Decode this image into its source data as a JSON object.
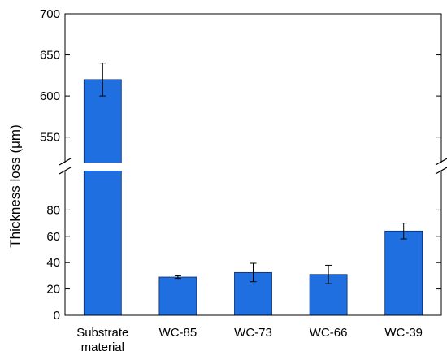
{
  "chart_data": {
    "type": "bar",
    "ylabel": "Thickness loss (μm)",
    "categories": [
      [
        "Substrate",
        "material"
      ],
      [
        "WC-85"
      ],
      [
        "WC-73"
      ],
      [
        "WC-66"
      ],
      [
        "WC-39"
      ]
    ],
    "values": [
      620,
      29,
      32.5,
      31,
      64
    ],
    "error": [
      20,
      1,
      7,
      7,
      6
    ],
    "axis_break": true,
    "lower_segment": {
      "ylim": [
        0,
        100
      ],
      "ticks": [
        0,
        20,
        40,
        60,
        80
      ]
    },
    "upper_segment": {
      "ylim": [
        520,
        700
      ],
      "ticks": [
        550,
        600,
        650,
        700
      ]
    },
    "bar_color": "#1f6fe0",
    "grid": false,
    "legend": "none"
  }
}
